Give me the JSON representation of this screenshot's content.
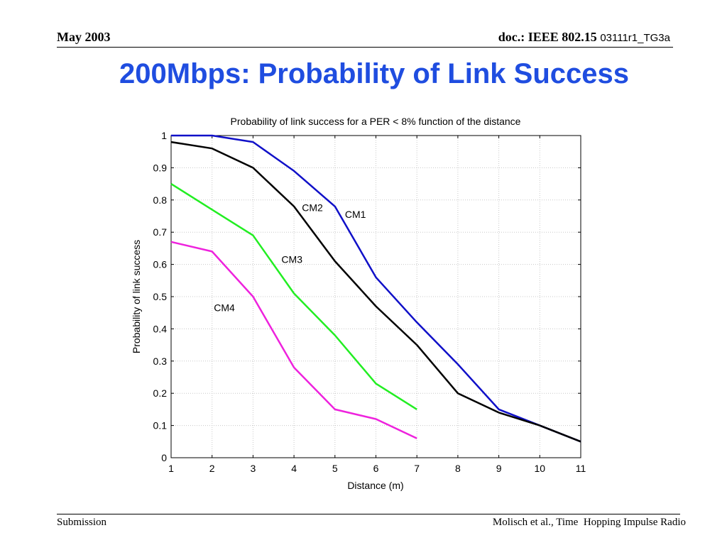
{
  "header": {
    "date": "May 2003",
    "doc_prefix": "doc.: IEEE 802.15",
    "doc_number": "03111r1_TG3a"
  },
  "slide": {
    "title": "200Mbps: Probability of Link Success"
  },
  "footer": {
    "left": "Submission",
    "right": "Molisch et al., Time  Hopping Impulse Radio"
  },
  "colors": {
    "title": "#1f4de0",
    "CM1": "#1010c8",
    "CM2": "#000000",
    "CM3": "#22ee22",
    "CM4": "#ee22dd"
  },
  "chart_data": {
    "type": "line",
    "title": "Probability of link success for a PER < 8% function of the distance",
    "xlabel": "Distance (m)",
    "ylabel": "Probability of link success",
    "xlim": [
      1,
      11
    ],
    "ylim": [
      0,
      1
    ],
    "xticks": [
      1,
      2,
      3,
      4,
      5,
      6,
      7,
      8,
      9,
      10,
      11
    ],
    "yticks": [
      0,
      0.1,
      0.2,
      0.3,
      0.4,
      0.5,
      0.6,
      0.7,
      0.8,
      0.9,
      1
    ],
    "grid": true,
    "series": [
      {
        "name": "CM1",
        "color": "#1010c8",
        "x": [
          1,
          2,
          3,
          4,
          5,
          6,
          7,
          8,
          9,
          10,
          11
        ],
        "y": [
          1.0,
          1.0,
          0.98,
          0.89,
          0.78,
          0.56,
          0.42,
          0.29,
          0.15,
          0.1,
          0.05
        ],
        "label_at": [
          5.5,
          0.745
        ]
      },
      {
        "name": "CM2",
        "color": "#000000",
        "x": [
          1,
          2,
          3,
          4,
          5,
          6,
          7,
          8,
          9,
          10,
          11
        ],
        "y": [
          0.98,
          0.96,
          0.9,
          0.78,
          0.61,
          0.47,
          0.35,
          0.2,
          0.14,
          0.1,
          0.05
        ],
        "label_at": [
          4.45,
          0.765
        ]
      },
      {
        "name": "CM3",
        "color": "#22ee22",
        "x": [
          1,
          2,
          3,
          4,
          5,
          6,
          7
        ],
        "y": [
          0.85,
          0.77,
          0.69,
          0.51,
          0.38,
          0.23,
          0.15
        ],
        "label_at": [
          3.95,
          0.605
        ]
      },
      {
        "name": "CM4",
        "color": "#ee22dd",
        "x": [
          1,
          2,
          3,
          4,
          5,
          6,
          7
        ],
        "y": [
          0.67,
          0.64,
          0.5,
          0.28,
          0.15,
          0.12,
          0.06
        ],
        "label_at": [
          2.3,
          0.455
        ]
      }
    ]
  }
}
